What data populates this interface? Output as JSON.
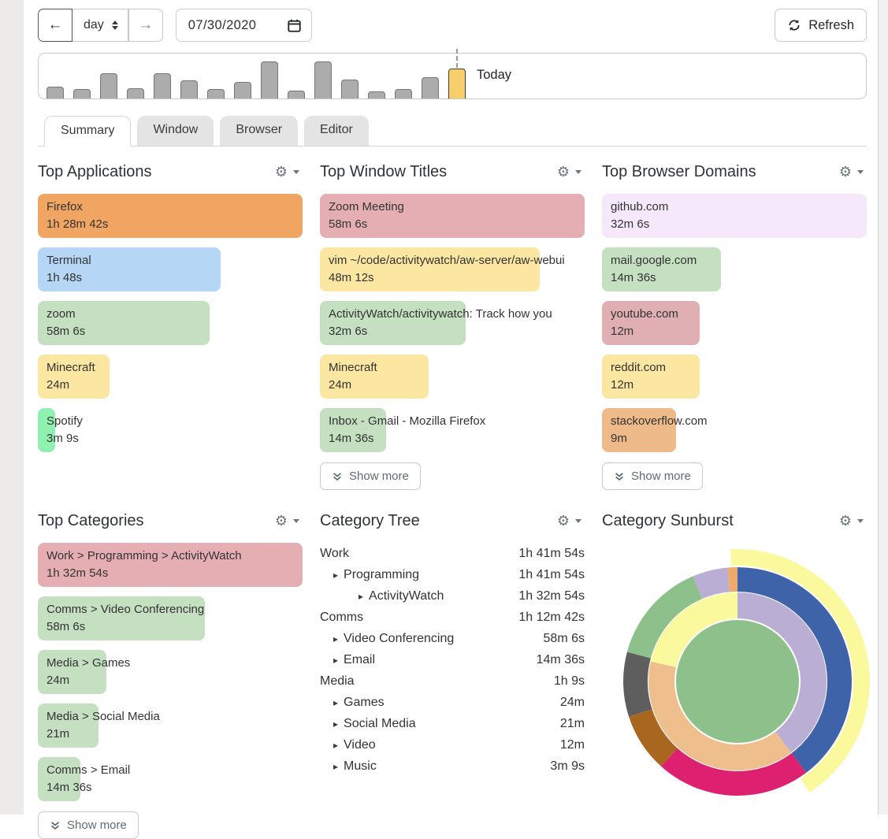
{
  "toolbar": {
    "back_icon": "←",
    "forward_icon": "→",
    "period_value": "day",
    "date_value": "07/30/2020",
    "refresh_label": "Refresh"
  },
  "timeline": {
    "today_label": "Today"
  },
  "tabs": [
    {
      "label": "Summary",
      "active": true
    },
    {
      "label": "Window",
      "active": false
    },
    {
      "label": "Browser",
      "active": false
    },
    {
      "label": "Editor",
      "active": false
    }
  ],
  "show_more_label": "Show more",
  "panels": [
    {
      "id": "top-applications",
      "title": "Top Applications",
      "show_more": false,
      "items": [
        {
          "name": "Firefox",
          "duration": "1h 28m 42s",
          "width_pct": 100,
          "color": "#f0a662"
        },
        {
          "name": "Terminal",
          "duration": "1h 48s",
          "width_pct": 69,
          "color": "#b5d6f4"
        },
        {
          "name": "zoom",
          "duration": "58m 6s",
          "width_pct": 65,
          "color": "#c5dfc1"
        },
        {
          "name": "Minecraft",
          "duration": "24m",
          "width_pct": 27,
          "color": "#fbe7a2"
        },
        {
          "name": "Spotify",
          "duration": "3m 9s",
          "width_pct": 4,
          "color": "#90f0b0"
        }
      ]
    },
    {
      "id": "top-window-titles",
      "title": "Top Window Titles",
      "show_more": true,
      "items": [
        {
          "name": "Zoom Meeting",
          "duration": "58m 6s",
          "width_pct": 100,
          "color": "#e4aeb2"
        },
        {
          "name": "vim ~/code/activitywatch/aw-server/aw-webui",
          "duration": "48m 12s",
          "width_pct": 83,
          "color": "#fbe7a2"
        },
        {
          "name": "ActivityWatch/activitywatch: Track how you",
          "duration": "32m 6s",
          "width_pct": 55,
          "color": "#c5dfc1"
        },
        {
          "name": "Minecraft",
          "duration": "24m",
          "width_pct": 41,
          "color": "#fbe7a2"
        },
        {
          "name": "Inbox - Gmail - Mozilla Firefox",
          "duration": "14m 36s",
          "width_pct": 25,
          "color": "#c5dfc1"
        }
      ]
    },
    {
      "id": "top-browser-domains",
      "title": "Top Browser Domains",
      "show_more": true,
      "items": [
        {
          "name": "github.com",
          "duration": "32m 6s",
          "width_pct": 100,
          "color": "#f4e8fa"
        },
        {
          "name": "mail.google.com",
          "duration": "14m 36s",
          "width_pct": 45,
          "color": "#c5dfc1"
        },
        {
          "name": "youtube.com",
          "duration": "12m",
          "width_pct": 37,
          "color": "#dfafb3"
        },
        {
          "name": "reddit.com",
          "duration": "12m",
          "width_pct": 37,
          "color": "#fbe7a2"
        },
        {
          "name": "stackoverflow.com",
          "duration": "9m",
          "width_pct": 28,
          "color": "#efba89"
        }
      ]
    },
    {
      "id": "top-categories",
      "title": "Top Categories",
      "show_more": true,
      "items": [
        {
          "name": "Work > Programming > ActivityWatch",
          "duration": "1h 32m 54s",
          "width_pct": 100,
          "color": "#e4aeb2"
        },
        {
          "name": "Comms > Video Conferencing",
          "duration": "58m 6s",
          "width_pct": 63,
          "color": "#c5dfc1"
        },
        {
          "name": "Media > Games",
          "duration": "24m",
          "width_pct": 26,
          "color": "#c5dfc1"
        },
        {
          "name": "Media > Social Media",
          "duration": "21m",
          "width_pct": 23,
          "color": "#c5dfc1"
        },
        {
          "name": "Comms > Email",
          "duration": "14m 36s",
          "width_pct": 16,
          "color": "#c5dfc1"
        }
      ]
    }
  ],
  "category_tree": {
    "title": "Category Tree",
    "rows": [
      {
        "name": "Work",
        "duration": "1h 41m 54s",
        "level": 0
      },
      {
        "name": "Programming",
        "duration": "1h 41m 54s",
        "level": 1
      },
      {
        "name": "ActivityWatch",
        "duration": "1h 32m 54s",
        "level": 2
      },
      {
        "name": "Comms",
        "duration": "1h 12m 42s",
        "level": 0
      },
      {
        "name": "Video Conferencing",
        "duration": "58m 6s",
        "level": 1
      },
      {
        "name": "Email",
        "duration": "14m 36s",
        "level": 1
      },
      {
        "name": "Media",
        "duration": "1h 9s",
        "level": 0
      },
      {
        "name": "Games",
        "duration": "24m",
        "level": 1
      },
      {
        "name": "Social Media",
        "duration": "21m",
        "level": 1
      },
      {
        "name": "Video",
        "duration": "12m",
        "level": 1
      },
      {
        "name": "Music",
        "duration": "3m 9s",
        "level": 1
      }
    ]
  },
  "sunburst": {
    "title": "Category Sunburst"
  },
  "chart_data": [
    {
      "type": "bar",
      "title": "Activity overview timeline with Today highlighted",
      "values": [
        0.26,
        0.22,
        0.57,
        0.24,
        0.58,
        0.41,
        0.21,
        0.37,
        0.84,
        0.17,
        0.84,
        0.42,
        0.16,
        0.21,
        0.48,
        0.67
      ],
      "highlight_index": 15,
      "highlight_label": "Today",
      "bar_color": "#acacac",
      "highlight_color": "#f6ce6c",
      "ylim": [
        0,
        1
      ]
    },
    {
      "type": "pie",
      "variant": "sunburst",
      "title": "Category Sunburst",
      "center": {
        "r": 78,
        "color": "#8dc08b"
      },
      "rings": [
        {
          "r0": 80,
          "r1": 113,
          "segments": [
            {
              "a0": 0,
              "a1": 143,
              "color": "#bbaed5"
            },
            {
              "a0": 143,
              "a1": 283,
              "color": "#efbe8d"
            },
            {
              "a0": 283,
              "a1": 360,
              "color": "#faf99e"
            }
          ]
        },
        {
          "r0": 114,
          "r1": 145,
          "segments": [
            {
              "a0": 0,
              "a1": 143,
              "color": "#3e63a8"
            },
            {
              "a0": 143,
              "a1": 222,
              "color": "#de2071"
            },
            {
              "a0": 222,
              "a1": 252,
              "color": "#a8661f"
            },
            {
              "a0": 252,
              "a1": 285,
              "color": "#5e5e5e"
            },
            {
              "a0": 285,
              "a1": 337,
              "color": "#8dc08b"
            },
            {
              "a0": 337,
              "a1": 355,
              "color": "#bbaed5"
            },
            {
              "a0": 355,
              "a1": 360,
              "color": "#efa96b"
            }
          ]
        },
        {
          "r0": 147,
          "r1": 168,
          "segments": [
            {
              "a0": -3,
              "a1": 147,
              "color": "#faf99e"
            }
          ]
        }
      ]
    }
  ]
}
